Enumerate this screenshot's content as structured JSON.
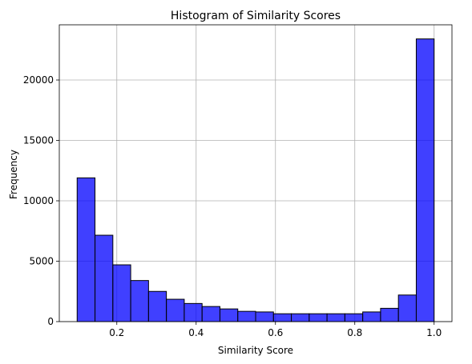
{
  "chart_data": {
    "type": "bar",
    "title": "Histogram of Similarity Scores",
    "xlabel": "Similarity Score",
    "ylabel": "Frequency",
    "bin_edges": [
      0.1,
      0.145,
      0.19,
      0.235,
      0.28,
      0.325,
      0.37,
      0.415,
      0.46,
      0.505,
      0.55,
      0.595,
      0.64,
      0.685,
      0.73,
      0.775,
      0.82,
      0.865,
      0.91,
      0.955,
      1.0
    ],
    "values": [
      11900,
      7150,
      4700,
      3400,
      2500,
      1850,
      1500,
      1250,
      1050,
      850,
      800,
      650,
      650,
      650,
      650,
      650,
      800,
      1100,
      2200,
      23400
    ],
    "xlim": [
      0.055,
      1.045
    ],
    "ylim": [
      0,
      24570
    ],
    "x_ticks": [
      0.2,
      0.4,
      0.6,
      0.8,
      1.0
    ],
    "x_tick_labels": [
      "0.2",
      "0.4",
      "0.6",
      "0.8",
      "1.0"
    ],
    "y_ticks": [
      0,
      5000,
      10000,
      15000,
      20000
    ],
    "y_tick_labels": [
      "0",
      "5000",
      "10000",
      "15000",
      "20000"
    ],
    "grid": true,
    "bar_color": "#0000ff",
    "bar_opacity": 0.75,
    "edge_color": "#000000"
  }
}
